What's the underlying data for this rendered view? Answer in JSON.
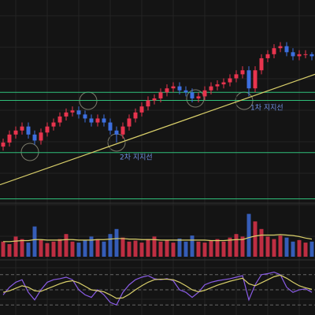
{
  "chart_data": {
    "type": "candlestick",
    "ylim": [
      0,
      100
    ],
    "grid": true,
    "up_color": "#e8344e",
    "down_color": "#3d6fe0",
    "open": [
      27,
      29,
      33,
      35,
      37,
      33,
      30,
      34,
      37,
      39,
      42,
      44,
      45,
      43,
      41,
      39,
      41,
      39,
      35,
      33,
      37,
      41,
      44,
      47,
      50,
      51,
      54,
      56,
      57,
      55,
      54,
      51,
      52,
      55,
      57,
      58,
      59,
      61,
      63,
      65,
      56,
      65,
      71,
      73,
      76,
      77,
      74,
      72,
      73,
      73
    ],
    "high": [
      31,
      35,
      37,
      39,
      39,
      35,
      36,
      39,
      41,
      44,
      46,
      47,
      47,
      45,
      43,
      43,
      43,
      41,
      37,
      39,
      43,
      46,
      49,
      52,
      53,
      56,
      58,
      59,
      59,
      57,
      56,
      54,
      57,
      59,
      60,
      61,
      63,
      65,
      67,
      67,
      67,
      73,
      75,
      78,
      79,
      79,
      76,
      75,
      75,
      74
    ],
    "low": [
      25,
      27,
      31,
      33,
      31,
      28,
      28,
      32,
      35,
      37,
      40,
      42,
      41,
      39,
      37,
      37,
      37,
      33,
      29,
      31,
      35,
      39,
      42,
      45,
      48,
      49,
      52,
      54,
      53,
      52,
      49,
      49,
      50,
      53,
      55,
      56,
      57,
      59,
      61,
      52,
      54,
      63,
      69,
      71,
      74,
      72,
      70,
      70,
      71,
      70
    ],
    "close": [
      29,
      33,
      35,
      37,
      33,
      30,
      34,
      37,
      39,
      42,
      44,
      45,
      43,
      41,
      39,
      41,
      39,
      35,
      33,
      37,
      41,
      44,
      47,
      50,
      51,
      54,
      56,
      57,
      55,
      54,
      51,
      52,
      55,
      57,
      58,
      59,
      61,
      63,
      65,
      56,
      65,
      71,
      73,
      76,
      77,
      74,
      72,
      73,
      73,
      72
    ],
    "support_lines": {
      "color": "#2fbf7a",
      "values": [
        54,
        50,
        24,
        1
      ]
    },
    "trendline": {
      "color": "#d9cf6a",
      "start": 8,
      "end": 63
    },
    "annotations": [
      {
        "text": "1차 지지선"
      },
      {
        "text": "2차 지지선"
      }
    ],
    "volume": {
      "ylim": [
        0,
        100
      ],
      "values": [
        30,
        25,
        40,
        35,
        28,
        60,
        33,
        27,
        30,
        35,
        45,
        30,
        28,
        32,
        40,
        35,
        30,
        45,
        55,
        38,
        30,
        32,
        28,
        35,
        40,
        30,
        33,
        28,
        36,
        30,
        42,
        30,
        28,
        32,
        35,
        30,
        38,
        45,
        40,
        85,
        70,
        55,
        40,
        35,
        42,
        38,
        30,
        33,
        28,
        30
      ]
    },
    "volume_ma": {
      "color": "#d9cf6a",
      "values": [
        30,
        30,
        31,
        32,
        32,
        34,
        34,
        33,
        33,
        33,
        34,
        34,
        33,
        33,
        33,
        34,
        34,
        35,
        36,
        36,
        35,
        35,
        34,
        34,
        34,
        33,
        33,
        33,
        33,
        33,
        33,
        33,
        33,
        32,
        32,
        32,
        33,
        34,
        34,
        38,
        41,
        43,
        43,
        43,
        44,
        43,
        42,
        40,
        37,
        35
      ]
    },
    "oscillator": {
      "ylim": [
        0,
        100
      ],
      "levels": [
        80,
        50,
        20
      ],
      "series": [
        {
          "color": "#8a5ce6",
          "values": [
            40,
            55,
            65,
            70,
            45,
            30,
            50,
            65,
            70,
            72,
            75,
            70,
            50,
            40,
            35,
            50,
            40,
            25,
            20,
            45,
            60,
            70,
            75,
            78,
            72,
            70,
            72,
            68,
            50,
            45,
            35,
            45,
            60,
            65,
            68,
            70,
            72,
            75,
            78,
            30,
            60,
            80,
            82,
            85,
            80,
            55,
            45,
            50,
            52,
            45
          ]
        },
        {
          "color": "#d9cf6a",
          "values": [
            45,
            48,
            53,
            58,
            55,
            48,
            47,
            52,
            57,
            62,
            66,
            68,
            64,
            57,
            50,
            48,
            46,
            40,
            33,
            34,
            41,
            50,
            58,
            65,
            70,
            71,
            71,
            70,
            65,
            58,
            50,
            46,
            49,
            54,
            59,
            63,
            67,
            70,
            73,
            62,
            58,
            64,
            70,
            76,
            79,
            73,
            65,
            58,
            54,
            51
          ]
        }
      ]
    }
  }
}
